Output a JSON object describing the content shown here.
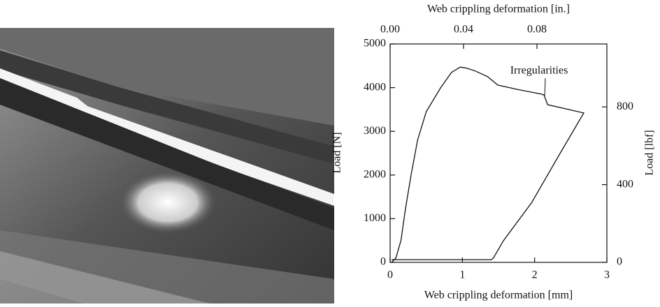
{
  "chart_data": {
    "type": "line",
    "xlabel": "Web crippling deformation [mm]",
    "x2label": "Web crippling deformation [in.]",
    "ylabel": "Load [N]",
    "y2label": "Load [lbf]",
    "annotation": "Irregularities",
    "x": [
      0.02,
      0.08,
      0.15,
      0.21,
      0.29,
      0.38,
      0.5,
      0.7,
      0.85,
      0.97,
      1.05,
      1.18,
      1.35,
      1.49,
      1.76,
      2.1,
      2.13,
      2.18,
      2.68,
      2.34,
      1.96,
      1.57,
      1.43,
      1.4,
      0.02
    ],
    "series": [
      {
        "color": "#111111",
        "values": [
          0,
          100,
          500,
          1200,
          2000,
          2800,
          3450,
          4000,
          4350,
          4470,
          4450,
          4380,
          4250,
          4060,
          3960,
          3850,
          3830,
          3610,
          3420,
          2460,
          1370,
          500,
          100,
          60,
          60
        ]
      }
    ],
    "xlim": [
      0,
      3
    ],
    "xticks": [
      0,
      1,
      2,
      3
    ],
    "x2lim": [
      0,
      0.1181
    ],
    "x2ticks": [
      {
        "value": 0,
        "label": "0.00"
      },
      {
        "value": 0.04,
        "label": "0.04"
      },
      {
        "value": 0.08,
        "label": "0.08"
      }
    ],
    "ylim": [
      0,
      5000
    ],
    "yticks": [
      0,
      1000,
      2000,
      3000,
      4000,
      5000
    ],
    "y2lim": [
      0,
      1124
    ],
    "y2ticks": [
      0,
      400,
      800
    ]
  }
}
